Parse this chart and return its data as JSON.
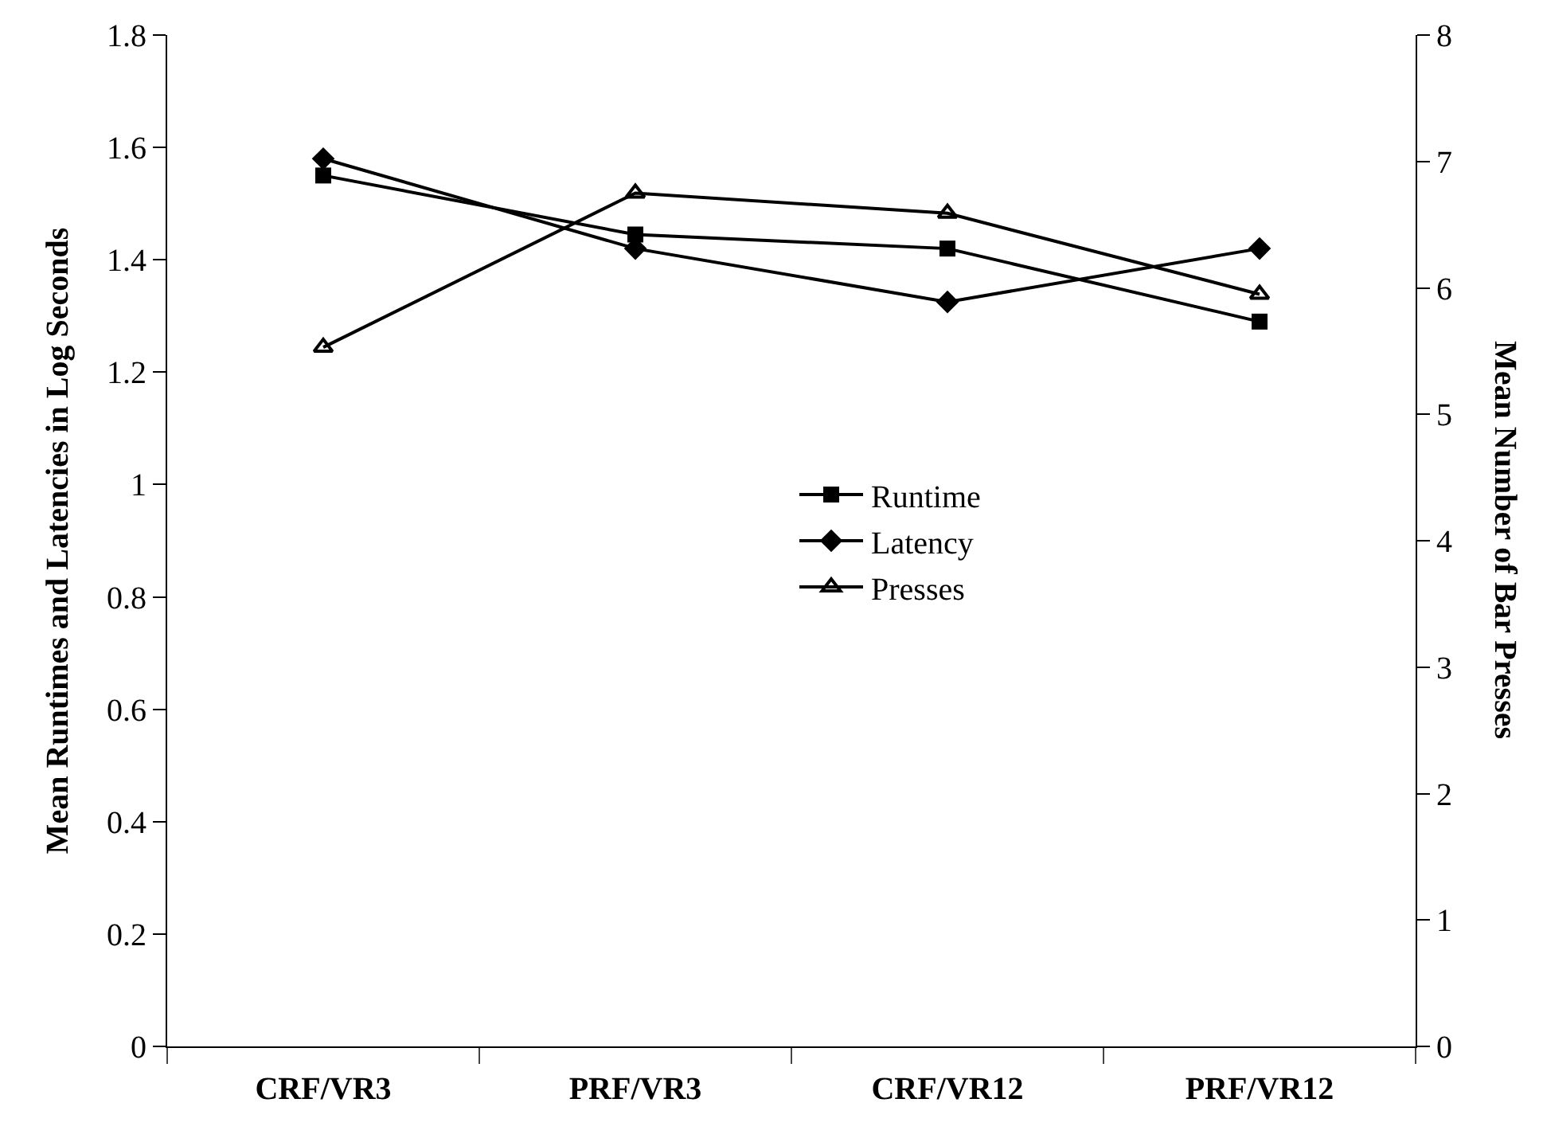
{
  "chart_data": {
    "type": "line",
    "categories": [
      "CRF/VR3",
      "PRF/VR3",
      "CRF/VR12",
      "PRF/VR12"
    ],
    "ylabel": "Mean Runtimes and Latencies in Log Seconds",
    "y2label": "Mean Number of Bar Presses",
    "ylim": [
      0,
      1.8
    ],
    "yticks": [
      0,
      0.2,
      0.4,
      0.6,
      0.8,
      1,
      1.2,
      1.4,
      1.6,
      1.8
    ],
    "y2lim": [
      0,
      8
    ],
    "y2ticks": [
      0,
      1,
      2,
      3,
      4,
      5,
      6,
      7,
      8
    ],
    "legend": "center",
    "line_style": "solid",
    "series": [
      {
        "name": "Runtime",
        "color": "#000000",
        "marker": "square",
        "values": [
          1.55,
          1.445,
          1.42,
          1.29
        ]
      },
      {
        "name": "Latency",
        "color": "#000000",
        "marker": "diamond",
        "values": [
          1.58,
          1.42,
          1.325,
          1.42
        ]
      },
      {
        "name": "Presses",
        "color": "#000000",
        "marker": "triangle",
        "axis": "y2",
        "values": [
          5.53,
          6.75,
          6.59,
          5.95
        ]
      }
    ]
  }
}
